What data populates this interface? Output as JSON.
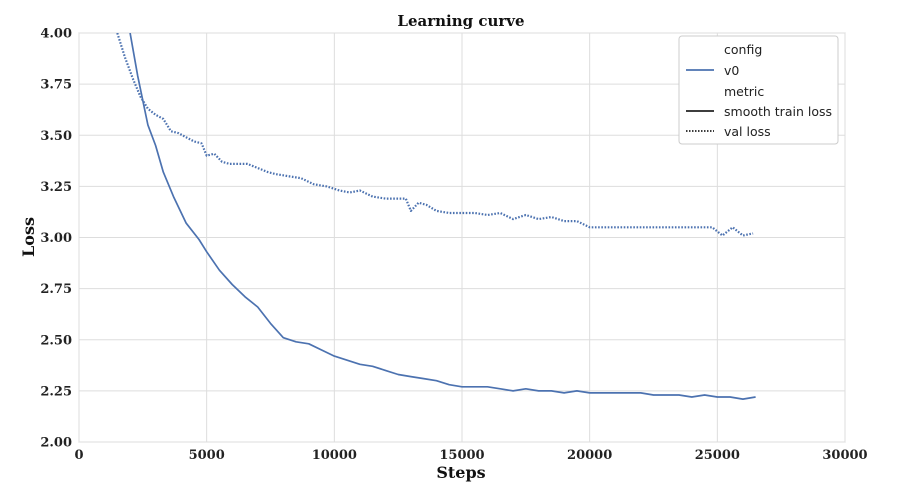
{
  "chart_data": {
    "type": "line",
    "title": "Learning curve",
    "xlabel": "Steps",
    "ylabel": "Loss",
    "xlim": [
      0,
      30000
    ],
    "ylim": [
      2.0,
      4.0
    ],
    "x_ticks": [
      "0",
      "5000",
      "10000",
      "15000",
      "20000",
      "25000",
      "30000"
    ],
    "y_ticks": [
      "2.00",
      "2.25",
      "2.50",
      "2.75",
      "3.00",
      "3.25",
      "3.50",
      "3.75",
      "4.00"
    ],
    "grid": true,
    "legend": {
      "placement": "top-right",
      "config_heading": "config",
      "config_entry": "v0",
      "metric_heading": "metric",
      "metric_entries": [
        "smooth train loss",
        "val loss"
      ]
    },
    "series": [
      {
        "name": "smooth train loss",
        "config": "v0",
        "color": "#4c72b0",
        "style": "solid",
        "x": [
          2000,
          2300,
          2700,
          3000,
          3300,
          3700,
          4200,
          4700,
          5000,
          5500,
          6000,
          6500,
          7000,
          7500,
          8000,
          8500,
          9000,
          9500,
          10000,
          10500,
          11000,
          11500,
          12000,
          12500,
          13000,
          13500,
          14000,
          14500,
          15000,
          15500,
          16000,
          16500,
          17000,
          17500,
          18000,
          18500,
          19000,
          19500,
          20000,
          20500,
          21000,
          21500,
          22000,
          22500,
          23000,
          23500,
          24000,
          24500,
          25000,
          25500,
          26000,
          26500
        ],
        "y": [
          4.0,
          3.79,
          3.55,
          3.45,
          3.32,
          3.2,
          3.07,
          2.99,
          2.93,
          2.84,
          2.77,
          2.71,
          2.66,
          2.58,
          2.51,
          2.49,
          2.48,
          2.45,
          2.42,
          2.4,
          2.38,
          2.37,
          2.35,
          2.33,
          2.32,
          2.31,
          2.3,
          2.28,
          2.27,
          2.27,
          2.27,
          2.26,
          2.25,
          2.26,
          2.25,
          2.25,
          2.24,
          2.25,
          2.24,
          2.24,
          2.24,
          2.24,
          2.24,
          2.23,
          2.23,
          2.23,
          2.22,
          2.23,
          2.22,
          2.22,
          2.21,
          2.22
        ]
      },
      {
        "name": "val loss",
        "config": "v0",
        "color": "#4c72b0",
        "style": "dotted",
        "x": [
          1500,
          1800,
          2100,
          2400,
          2700,
          3000,
          3300,
          3600,
          3900,
          4200,
          4500,
          4800,
          5000,
          5300,
          5600,
          5900,
          6200,
          6600,
          7000,
          7400,
          7700,
          8200,
          8700,
          9200,
          9700,
          10200,
          10600,
          11000,
          11500,
          12000,
          12500,
          12800,
          13000,
          13300,
          13600,
          14000,
          14500,
          15000,
          15500,
          16000,
          16500,
          17000,
          17500,
          18000,
          18500,
          19000,
          19500,
          20000,
          21000,
          22000,
          23000,
          24000,
          24800,
          25200,
          25600,
          26000,
          26400
        ],
        "y": [
          4.0,
          3.88,
          3.78,
          3.69,
          3.63,
          3.6,
          3.58,
          3.52,
          3.51,
          3.49,
          3.47,
          3.46,
          3.4,
          3.41,
          3.37,
          3.36,
          3.36,
          3.36,
          3.34,
          3.32,
          3.31,
          3.3,
          3.29,
          3.26,
          3.25,
          3.23,
          3.22,
          3.23,
          3.2,
          3.19,
          3.19,
          3.19,
          3.13,
          3.17,
          3.16,
          3.13,
          3.12,
          3.12,
          3.12,
          3.11,
          3.12,
          3.09,
          3.11,
          3.09,
          3.1,
          3.08,
          3.08,
          3.05,
          3.05,
          3.05,
          3.05,
          3.05,
          3.05,
          3.01,
          3.05,
          3.01,
          3.02
        ]
      }
    ]
  }
}
